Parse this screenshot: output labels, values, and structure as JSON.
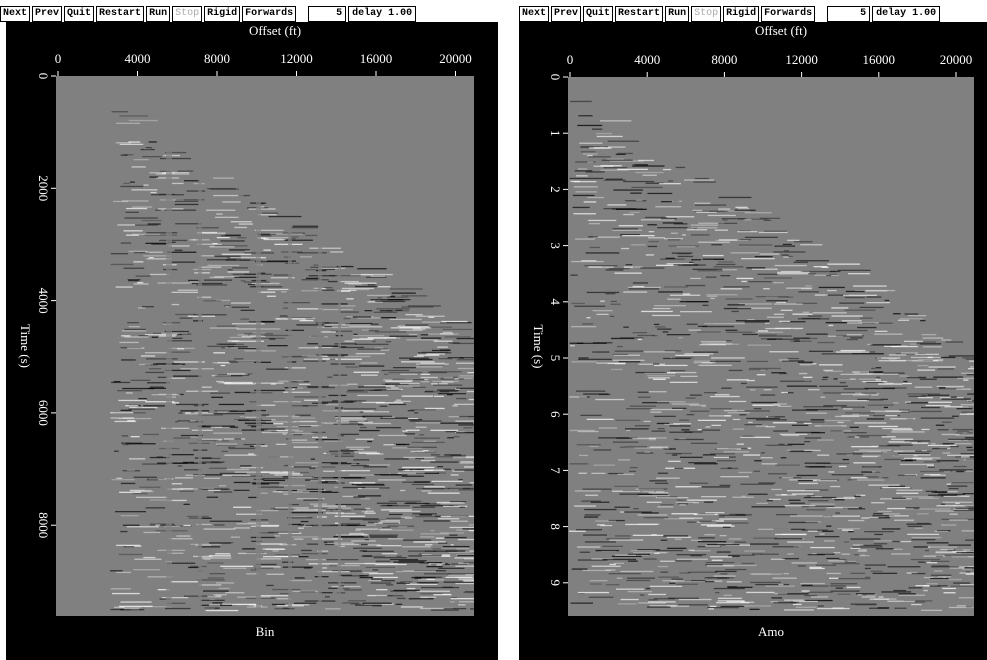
{
  "panels": [
    {
      "toolbar": {
        "buttons": [
          "Next",
          "Prev",
          "Quit",
          "Restart",
          "Run",
          "Stop",
          "Rigid",
          "Forwards"
        ],
        "frame": "5",
        "delay": "delay 1.00"
      },
      "x_axis": {
        "label": "Offset (ft)",
        "ticks": [
          0,
          4000,
          8000,
          12000,
          16000,
          20000
        ]
      },
      "y_axis": {
        "label": "Time (s)",
        "ticks": [
          0,
          2000,
          4000,
          6000,
          8000
        ]
      },
      "title": "Bin"
    },
    {
      "toolbar": {
        "buttons": [
          "Next",
          "Prev",
          "Quit",
          "Restart",
          "Run",
          "Stop",
          "Rigid",
          "Forwards"
        ],
        "frame": "5",
        "delay": "delay 1.00"
      },
      "x_axis": {
        "label": "Offset (ft)",
        "ticks": [
          0,
          4000,
          8000,
          12000,
          16000,
          20000
        ]
      },
      "y_axis": {
        "label": "Time (s)",
        "ticks": [
          0,
          1,
          2,
          3,
          4,
          5,
          6,
          7,
          8,
          9
        ]
      },
      "title": "Amo"
    }
  ]
}
